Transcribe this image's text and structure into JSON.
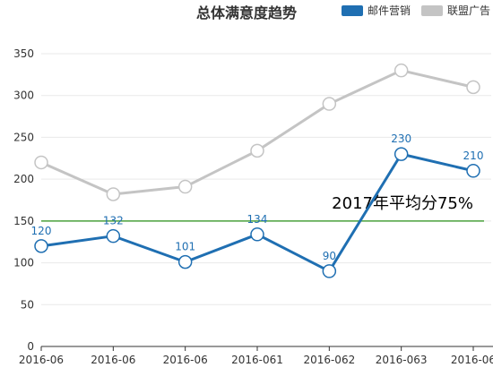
{
  "chart_data": {
    "type": "line",
    "title": "总体满意度趋势",
    "categories": [
      "2016-06",
      "2016-06",
      "2016-06",
      "2016-061",
      "2016-062",
      "2016-063",
      "2016-06"
    ],
    "series": [
      {
        "name": "邮件营销",
        "color": "#1f6fb2",
        "values": [
          120,
          132,
          101,
          134,
          90,
          230,
          210
        ],
        "show_labels": true
      },
      {
        "name": "联盟广告",
        "color": "#c4c4c4",
        "values": [
          220,
          182,
          191,
          234,
          290,
          330,
          310
        ],
        "show_labels": false
      }
    ],
    "ylim": [
      0,
      350
    ],
    "yticks": [
      0,
      50,
      100,
      150,
      200,
      250,
      300,
      350
    ],
    "grid": true,
    "legend_position": "top-right",
    "mark_line": {
      "value": 150,
      "label": "2017年平均分75%",
      "color": "#4aa03c"
    }
  }
}
